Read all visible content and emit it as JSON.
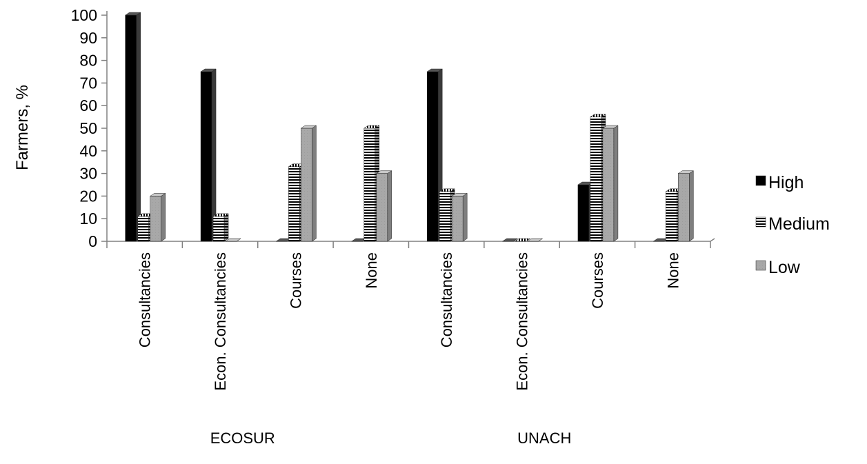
{
  "chart_data": {
    "type": "bar",
    "title": "",
    "xlabel": "",
    "ylabel": "Farmers, %",
    "ylim": [
      0,
      100
    ],
    "yticks": [
      0,
      10,
      20,
      30,
      40,
      50,
      60,
      70,
      80,
      90,
      100
    ],
    "groups": [
      {
        "name": "ECOSUR",
        "categories": [
          "Consultancies",
          "Econ. Consultancies",
          "Courses",
          "None"
        ]
      },
      {
        "name": "UNACH",
        "categories": [
          "Consultancies",
          "Econ. Consultancies",
          "Courses",
          "None"
        ]
      }
    ],
    "categories": [
      "Consultancies",
      "Econ. Consultancies",
      "Courses",
      "None",
      "Consultancies",
      "Econ. Consultancies",
      "Courses",
      "None"
    ],
    "series": [
      {
        "name": "High",
        "values": [
          100,
          75,
          0,
          0,
          75,
          0,
          25,
          0
        ]
      },
      {
        "name": "Medium",
        "values": [
          11,
          11,
          33,
          50,
          22,
          0,
          55,
          22
        ]
      },
      {
        "name": "Low",
        "values": [
          20,
          0,
          50,
          30,
          20,
          0,
          50,
          30
        ]
      }
    ],
    "legend_position": "right",
    "grid": false,
    "bar_style": "3d"
  },
  "colors": {
    "high": "#000000",
    "medium_stripe": "#000000",
    "medium_bg": "#ffffff",
    "low": "#a6a6a6",
    "low_side": "#7f7f7f",
    "axis": "#808080"
  }
}
